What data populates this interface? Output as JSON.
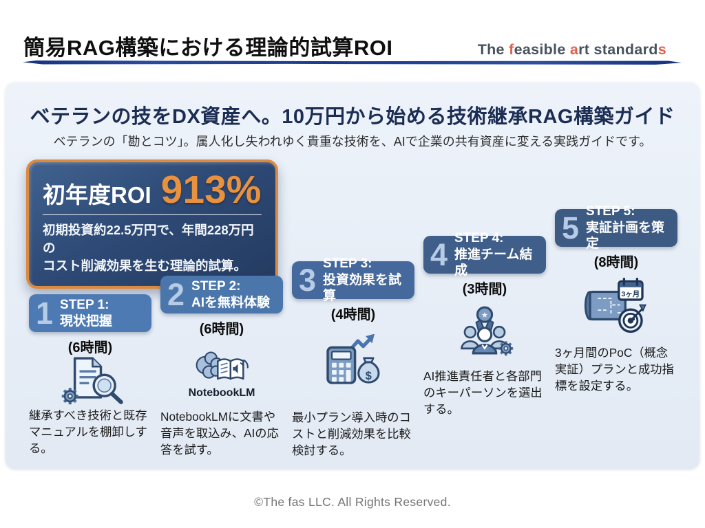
{
  "header": {
    "title": "簡易RAG構築における理論的試算ROI",
    "logo_segments": [
      {
        "text": "The ",
        "color": "#47525f"
      },
      {
        "text": "f",
        "color": "#e0604d"
      },
      {
        "text": "easible ",
        "color": "#47525f"
      },
      {
        "text": "a",
        "color": "#e0604d"
      },
      {
        "text": "rt standard",
        "color": "#47525f"
      },
      {
        "text": "s",
        "color": "#e0604d"
      }
    ]
  },
  "hero": {
    "heading": "ベテランの技をDX資産へ。10万円から始める技術継承RAG構築ガイド",
    "subheading": "ベテランの「勘とコツ」。属人化し失われゆく貴重な技術を、AIで企業の共有資産に変える実践ガイドです。"
  },
  "roi": {
    "label": "初年度ROI",
    "value": "913%",
    "line1": "初期投資約22.5万円で、年間228万円の",
    "line2": "コスト削減効果を生む理論的試算。"
  },
  "steps": [
    {
      "number": "1",
      "title_line1": "STEP 1:",
      "title_line2": "現状把握",
      "time": "(6時間)",
      "box_color": "#4e7ab3",
      "icon": "document-search-icon",
      "description": "継承すべき技術と既存マニュアルを棚卸しする。"
    },
    {
      "number": "2",
      "title_line1": "STEP 2:",
      "title_line2": "AIを無料体験",
      "time": "(6時間)",
      "box_color": "#4a76ab",
      "icon": "brain-notebook-icon",
      "icon_caption": "NotebookLM",
      "description": "NotebookLMに文書や音声を取込み、AIの応答を試す。"
    },
    {
      "number": "3",
      "title_line1": "STEP 3:",
      "title_line2": "投資効果を試算",
      "time": "(4時間)",
      "box_color": "#45699c",
      "icon": "calculator-money-icon",
      "description": "最小プラン導入時のコストと削減効果を比較検討する。"
    },
    {
      "number": "4",
      "title_line1": "STEP 4:",
      "title_line2": "推進チーム結成",
      "time": "(3時間)",
      "box_color": "#3f5e8a",
      "icon": "team-award-icon",
      "description": "AI推進責任者と各部門のキーパーソンを選出する。"
    },
    {
      "number": "5",
      "title_line1": "STEP 5:",
      "title_line2": "実証計画を策定",
      "time": "(8時間)",
      "box_color": "#3d5a82",
      "icon": "plan-target-icon",
      "calendar_label": "3ヶ月",
      "description": "3ヶ月間のPoC（概念実証）プランと成功指標を設定する。"
    }
  ],
  "footer": {
    "copyright": "©The fas LLC. All Rights Reserved."
  },
  "colors": {
    "brand_blue": "#22418e",
    "accent_orange": "#e8913f",
    "roi_border": "#db8a40",
    "panel_bg": "#e8eff7",
    "logo_red": "#e0604d"
  }
}
